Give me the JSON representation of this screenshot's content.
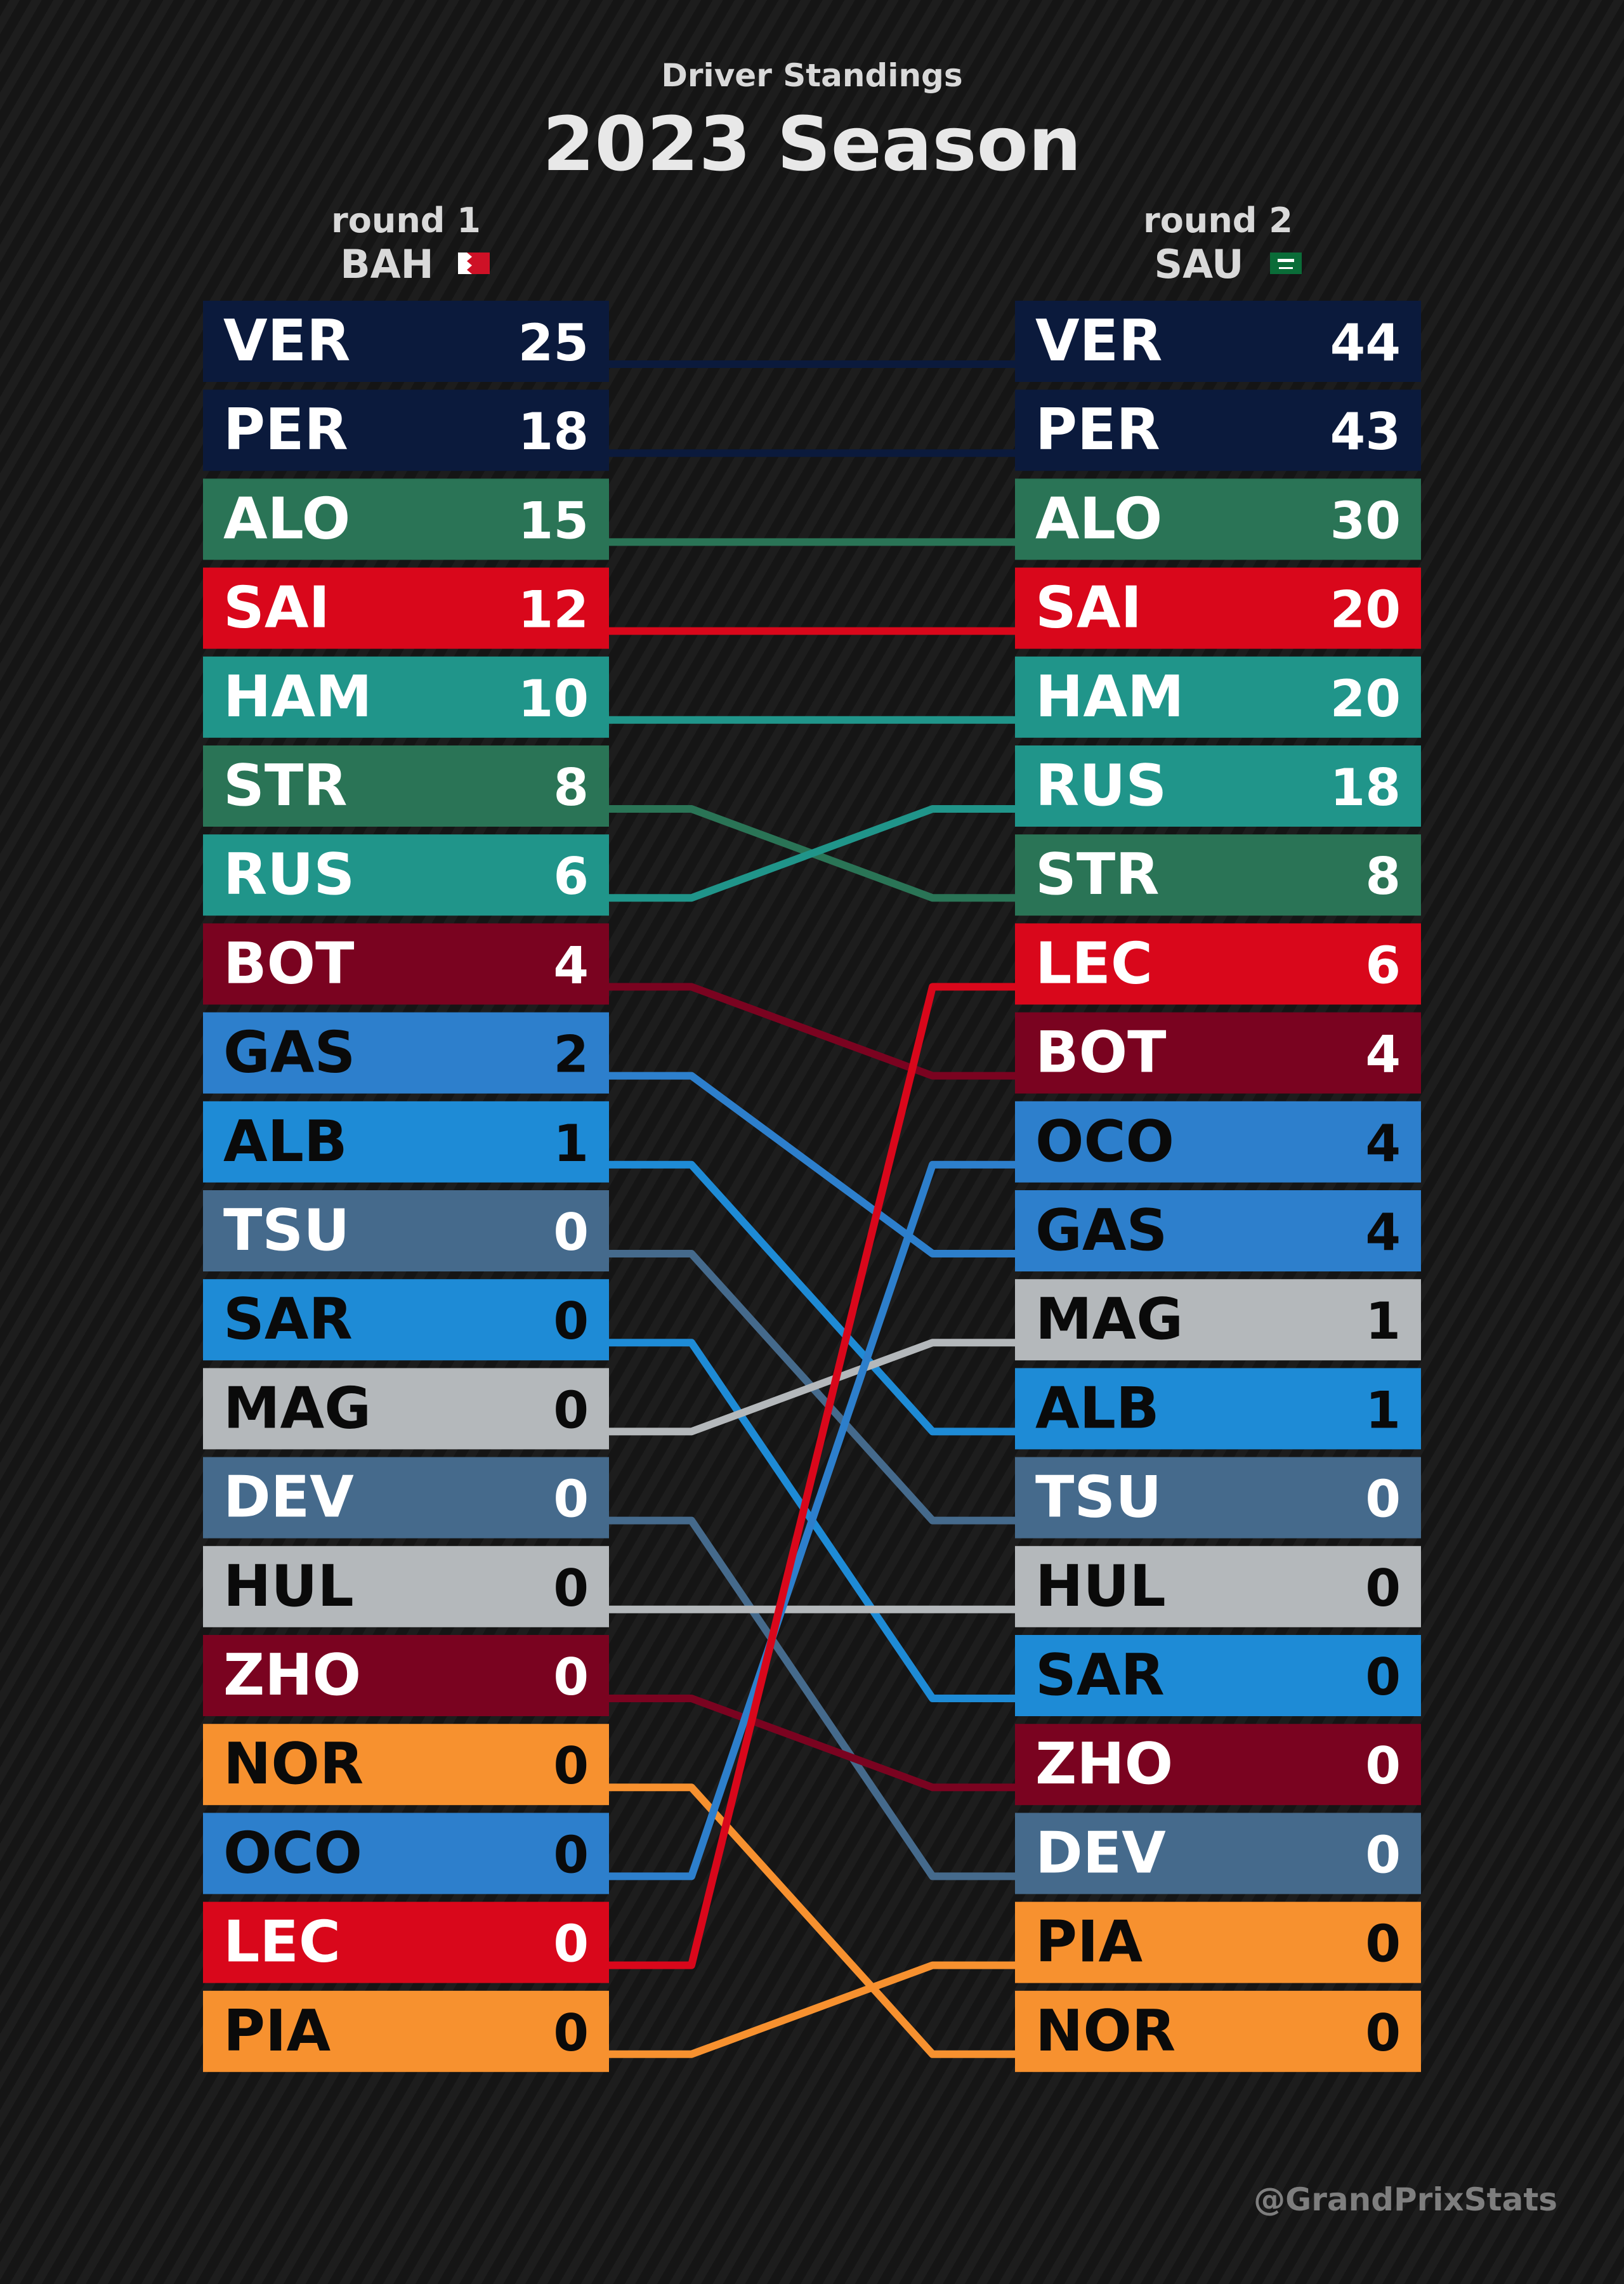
{
  "chart_data": {
    "type": "bump",
    "subtitle": "Driver Standings",
    "title": "2023 Season",
    "columns": [
      {
        "round_label": "round 1",
        "race": "BAH",
        "flag": "bahrain-flag",
        "standings": [
          {
            "driver": "VER",
            "points": 25
          },
          {
            "driver": "PER",
            "points": 18
          },
          {
            "driver": "ALO",
            "points": 15
          },
          {
            "driver": "SAI",
            "points": 12
          },
          {
            "driver": "HAM",
            "points": 10
          },
          {
            "driver": "STR",
            "points": 8
          },
          {
            "driver": "RUS",
            "points": 6
          },
          {
            "driver": "BOT",
            "points": 4
          },
          {
            "driver": "GAS",
            "points": 2
          },
          {
            "driver": "ALB",
            "points": 1
          },
          {
            "driver": "TSU",
            "points": 0
          },
          {
            "driver": "SAR",
            "points": 0
          },
          {
            "driver": "MAG",
            "points": 0
          },
          {
            "driver": "DEV",
            "points": 0
          },
          {
            "driver": "HUL",
            "points": 0
          },
          {
            "driver": "ZHO",
            "points": 0
          },
          {
            "driver": "NOR",
            "points": 0
          },
          {
            "driver": "OCO",
            "points": 0
          },
          {
            "driver": "LEC",
            "points": 0
          },
          {
            "driver": "PIA",
            "points": 0
          }
        ]
      },
      {
        "round_label": "round 2",
        "race": "SAU",
        "flag": "saudi-arabia-flag",
        "standings": [
          {
            "driver": "VER",
            "points": 44
          },
          {
            "driver": "PER",
            "points": 43
          },
          {
            "driver": "ALO",
            "points": 30
          },
          {
            "driver": "SAI",
            "points": 20
          },
          {
            "driver": "HAM",
            "points": 20
          },
          {
            "driver": "RUS",
            "points": 18
          },
          {
            "driver": "STR",
            "points": 8
          },
          {
            "driver": "LEC",
            "points": 6
          },
          {
            "driver": "BOT",
            "points": 4
          },
          {
            "driver": "OCO",
            "points": 4
          },
          {
            "driver": "GAS",
            "points": 4
          },
          {
            "driver": "MAG",
            "points": 1
          },
          {
            "driver": "ALB",
            "points": 1
          },
          {
            "driver": "TSU",
            "points": 0
          },
          {
            "driver": "HUL",
            "points": 0
          },
          {
            "driver": "SAR",
            "points": 0
          },
          {
            "driver": "ZHO",
            "points": 0
          },
          {
            "driver": "DEV",
            "points": 0
          },
          {
            "driver": "PIA",
            "points": 0
          },
          {
            "driver": "NOR",
            "points": 0
          }
        ]
      }
    ],
    "team_colors": {
      "VER": {
        "bg": "#0b1a3c",
        "text": "#ffffff"
      },
      "PER": {
        "bg": "#0b1a3c",
        "text": "#ffffff"
      },
      "ALO": {
        "bg": "#2a7456",
        "text": "#ffffff"
      },
      "STR": {
        "bg": "#2a7456",
        "text": "#ffffff"
      },
      "SAI": {
        "bg": "#d9071b",
        "text": "#ffffff"
      },
      "LEC": {
        "bg": "#d9071b",
        "text": "#ffffff"
      },
      "HAM": {
        "bg": "#20958a",
        "text": "#ffffff"
      },
      "RUS": {
        "bg": "#20958a",
        "text": "#ffffff"
      },
      "BOT": {
        "bg": "#7a0320",
        "text": "#ffffff"
      },
      "ZHO": {
        "bg": "#7a0320",
        "text": "#ffffff"
      },
      "GAS": {
        "bg": "#2d7fcc",
        "text": "#0a0a0a"
      },
      "OCO": {
        "bg": "#2d7fcc",
        "text": "#0a0a0a"
      },
      "ALB": {
        "bg": "#1e8bd6",
        "text": "#0a0a0a"
      },
      "SAR": {
        "bg": "#1e8bd6",
        "text": "#0a0a0a"
      },
      "TSU": {
        "bg": "#456a8c",
        "text": "#ffffff"
      },
      "DEV": {
        "bg": "#456a8c",
        "text": "#ffffff"
      },
      "MAG": {
        "bg": "#b4b8bb",
        "text": "#0a0a0a"
      },
      "HUL": {
        "bg": "#b4b8bb",
        "text": "#0a0a0a"
      },
      "NOR": {
        "bg": "#f7912f",
        "text": "#0a0a0a"
      },
      "PIA": {
        "bg": "#f7912f",
        "text": "#0a0a0a"
      }
    }
  },
  "watermark": "@GrandPrixStats"
}
